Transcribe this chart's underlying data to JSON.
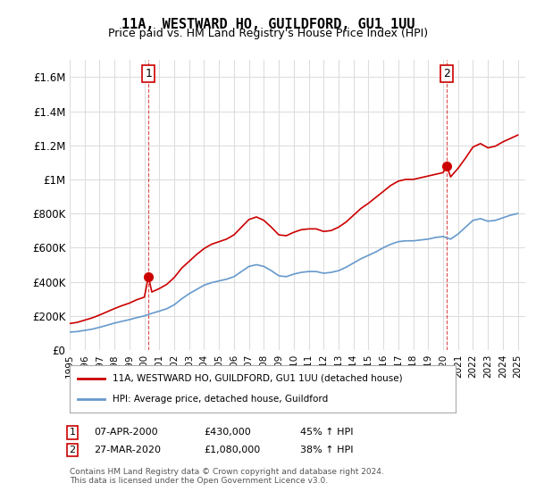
{
  "title": "11A, WESTWARD HO, GUILDFORD, GU1 1UU",
  "subtitle": "Price paid vs. HM Land Registry's House Price Index (HPI)",
  "footer": "Contains HM Land Registry data © Crown copyright and database right 2024.\nThis data is licensed under the Open Government Licence v3.0.",
  "ylabel_ticks": [
    "£0",
    "£200K",
    "£400K",
    "£600K",
    "£800K",
    "£1M",
    "£1.2M",
    "£1.4M",
    "£1.6M"
  ],
  "ytick_values": [
    0,
    200000,
    400000,
    600000,
    800000,
    1000000,
    1200000,
    1400000,
    1600000
  ],
  "ylim": [
    0,
    1700000
  ],
  "xlim_start": 1995.0,
  "xlim_end": 2025.5,
  "sale1_year": 2000.27,
  "sale1_value": 430000,
  "sale2_year": 2020.24,
  "sale2_value": 1080000,
  "line_color_red": "#cc0000",
  "line_color_blue": "#6699cc",
  "marker_color_red": "#cc0000",
  "bg_color": "#ffffff",
  "grid_color": "#dddddd",
  "legend_label_red": "11A, WESTWARD HO, GUILDFORD, GU1 1UU (detached house)",
  "legend_label_blue": "HPI: Average price, detached house, Guildford",
  "table_row1": [
    "1",
    "07-APR-2000",
    "£430,000",
    "45% ↑ HPI"
  ],
  "table_row2": [
    "2",
    "27-MAR-2020",
    "£1,080,000",
    "38% ↑ HPI"
  ],
  "hpi_years": [
    1995.0,
    1995.5,
    1996.0,
    1996.5,
    1997.0,
    1997.5,
    1998.0,
    1998.5,
    1999.0,
    1999.5,
    2000.0,
    2000.5,
    2001.0,
    2001.5,
    2002.0,
    2002.5,
    2003.0,
    2003.5,
    2004.0,
    2004.5,
    2005.0,
    2005.5,
    2006.0,
    2006.5,
    2007.0,
    2007.5,
    2008.0,
    2008.5,
    2009.0,
    2009.5,
    2010.0,
    2010.5,
    2011.0,
    2011.5,
    2012.0,
    2012.5,
    2013.0,
    2013.5,
    2014.0,
    2014.5,
    2015.0,
    2015.5,
    2016.0,
    2016.5,
    2017.0,
    2017.5,
    2018.0,
    2018.5,
    2019.0,
    2019.5,
    2020.0,
    2020.5,
    2021.0,
    2021.5,
    2022.0,
    2022.5,
    2023.0,
    2023.5,
    2024.0,
    2024.5,
    2025.0
  ],
  "hpi_values": [
    105000,
    108000,
    115000,
    122000,
    133000,
    145000,
    158000,
    168000,
    178000,
    190000,
    200000,
    215000,
    228000,
    242000,
    265000,
    300000,
    330000,
    355000,
    380000,
    395000,
    405000,
    415000,
    430000,
    460000,
    490000,
    500000,
    490000,
    465000,
    435000,
    430000,
    445000,
    455000,
    460000,
    460000,
    450000,
    455000,
    465000,
    485000,
    510000,
    535000,
    555000,
    575000,
    600000,
    620000,
    635000,
    640000,
    640000,
    645000,
    650000,
    660000,
    665000,
    650000,
    680000,
    720000,
    760000,
    770000,
    755000,
    760000,
    775000,
    790000,
    800000
  ],
  "red_years": [
    1995.0,
    1995.5,
    1996.0,
    1996.5,
    1997.0,
    1997.5,
    1998.0,
    1998.5,
    1999.0,
    1999.5,
    2000.0,
    2000.27,
    2000.5,
    2001.0,
    2001.5,
    2002.0,
    2002.5,
    2003.0,
    2003.5,
    2004.0,
    2004.5,
    2005.0,
    2005.5,
    2006.0,
    2006.5,
    2007.0,
    2007.5,
    2008.0,
    2008.5,
    2009.0,
    2009.5,
    2010.0,
    2010.5,
    2011.0,
    2011.5,
    2012.0,
    2012.5,
    2013.0,
    2013.5,
    2014.0,
    2014.5,
    2015.0,
    2015.5,
    2016.0,
    2016.5,
    2017.0,
    2017.5,
    2018.0,
    2018.5,
    2019.0,
    2019.5,
    2020.0,
    2020.24,
    2020.5,
    2021.0,
    2021.5,
    2022.0,
    2022.5,
    2023.0,
    2023.5,
    2024.0,
    2024.5,
    2025.0
  ],
  "red_values": [
    155000,
    162000,
    175000,
    188000,
    205000,
    224000,
    243000,
    260000,
    275000,
    295000,
    310000,
    430000,
    340000,
    360000,
    385000,
    425000,
    480000,
    520000,
    560000,
    595000,
    620000,
    635000,
    650000,
    675000,
    720000,
    765000,
    780000,
    760000,
    720000,
    675000,
    670000,
    690000,
    705000,
    710000,
    710000,
    695000,
    700000,
    720000,
    750000,
    790000,
    830000,
    860000,
    895000,
    930000,
    965000,
    990000,
    1000000,
    1000000,
    1010000,
    1020000,
    1030000,
    1040000,
    1080000,
    1015000,
    1065000,
    1125000,
    1190000,
    1210000,
    1185000,
    1195000,
    1220000,
    1240000,
    1260000
  ]
}
